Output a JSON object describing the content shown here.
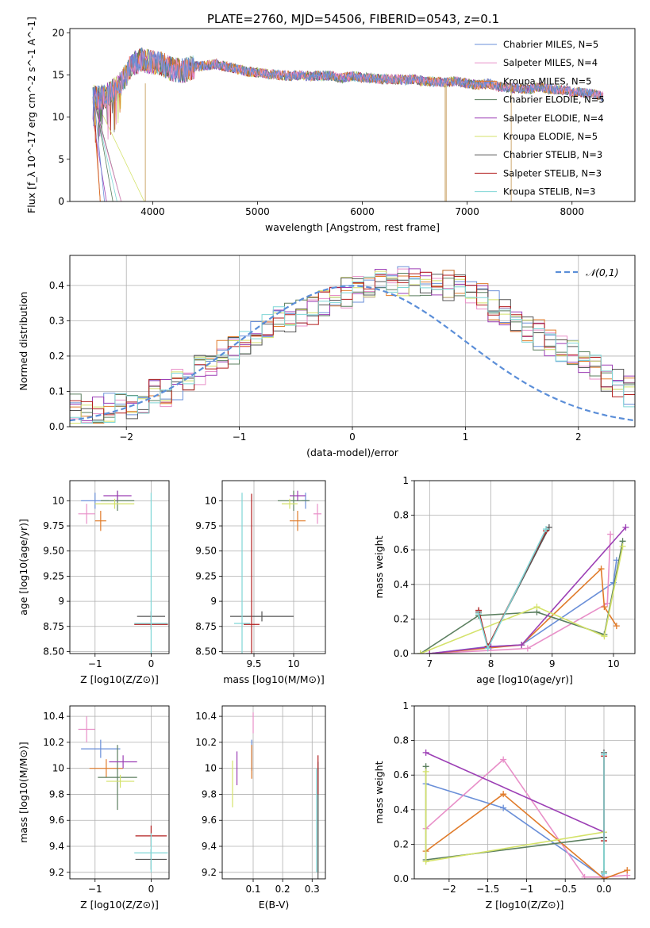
{
  "figure": {
    "title": "PLATE=2760, MJD=54506, FIBERID=0543, z=0.1"
  },
  "chart_data": [
    {
      "id": "spectrum",
      "type": "line",
      "xlabel": "wavelength [Angstrom, rest frame]",
      "ylabel": "Flux [f_λ 10^-17 erg cm^-2 s^-1 A^-1]",
      "xlim": [
        3210,
        8600
      ],
      "ylim": [
        0,
        20.5
      ],
      "xticks": [
        4000,
        5000,
        6000,
        7000,
        8000
      ],
      "yticks": [
        0,
        5,
        10,
        15,
        20
      ],
      "grid": false,
      "legend_position": "right",
      "series": [
        {
          "name": "Chabrier MILES, N_SSP=5",
          "color": "#6a8fd8"
        },
        {
          "name": "Salpeter MILES, N_SSP=4",
          "color": "#e88fc8"
        },
        {
          "name": "Kroupa MILES, N_SSP=5",
          "color": "#e07b2a"
        },
        {
          "name": "Chabrier ELODIE, N_SSP=5",
          "color": "#5b7f5f"
        },
        {
          "name": "Salpeter ELODIE, N_SSP=4",
          "color": "#9c3fb5"
        },
        {
          "name": "Kroupa ELODIE, N_SSP=5",
          "color": "#d4e26a"
        },
        {
          "name": "Chabrier STELIB, N_SSP=3",
          "color": "#555555"
        },
        {
          "name": "Salpeter STELIB, N_SSP=3",
          "color": "#b21f1f"
        },
        {
          "name": "Kroupa STELIB, N_SSP=3",
          "color": "#7fd6d6"
        }
      ],
      "data_envelope": {
        "wavelength": [
          3430,
          3500,
          3600,
          3700,
          3800,
          3900,
          4000,
          4100,
          4200,
          4300,
          4400,
          4500,
          4600,
          4700,
          4800,
          4900,
          5000,
          5100,
          5200,
          5300,
          5400,
          5500,
          5600,
          5700,
          5800,
          5900,
          6000,
          6100,
          6200,
          6300,
          6400,
          6500,
          6600,
          6700,
          6800,
          6900,
          7000,
          7100,
          7200,
          7300,
          7400,
          7500,
          7600,
          7700,
          7800,
          7900,
          8000,
          8100,
          8200,
          8300
        ],
        "flux": [
          12.5,
          12.2,
          12.8,
          14.0,
          16.3,
          16.8,
          16.5,
          16.2,
          15.6,
          15.5,
          16.0,
          16.1,
          16.3,
          16.0,
          15.7,
          15.4,
          15.3,
          15.1,
          15.0,
          14.9,
          15.0,
          14.8,
          14.9,
          14.9,
          14.6,
          14.9,
          14.7,
          14.6,
          14.5,
          14.5,
          14.4,
          14.5,
          14.2,
          14.2,
          14.1,
          14.3,
          14.0,
          13.8,
          14.0,
          13.6,
          13.5,
          13.4,
          13.3,
          13.6,
          13.3,
          13.2,
          13.0,
          12.9,
          12.8,
          12.4
        ]
      }
    },
    {
      "id": "residual_hist",
      "type": "line",
      "xlabel": "(data-model)/error",
      "ylabel": "Normed distribution",
      "xlim": [
        -2.5,
        2.5
      ],
      "ylim": [
        0,
        0.485
      ],
      "xticks": [
        -2,
        -1,
        0,
        1,
        2
      ],
      "yticks": [
        0.0,
        0.1,
        0.2,
        0.3,
        0.4
      ],
      "grid": true,
      "legend_position": "top-right",
      "legend": "𝒩(0,1)",
      "bin_edges_start": -2.5,
      "bin_width": 0.1,
      "reference_curve": {
        "name": "𝒩(0,1)",
        "color": "#5b8ed8",
        "style": "dashed"
      },
      "histogram_mean": [
        0.05,
        0.04,
        0.04,
        0.05,
        0.05,
        0.06,
        0.07,
        0.09,
        0.1,
        0.12,
        0.14,
        0.16,
        0.18,
        0.2,
        0.22,
        0.24,
        0.26,
        0.28,
        0.3,
        0.31,
        0.32,
        0.33,
        0.35,
        0.37,
        0.38,
        0.39,
        0.4,
        0.41,
        0.41,
        0.41,
        0.41,
        0.41,
        0.4,
        0.4,
        0.39,
        0.38,
        0.36,
        0.34,
        0.32,
        0.3,
        0.28,
        0.26,
        0.24,
        0.22,
        0.2,
        0.18,
        0.16,
        0.14,
        0.12,
        0.1
      ],
      "series_colors": [
        "#6a8fd8",
        "#e88fc8",
        "#e07b2a",
        "#5b7f5f",
        "#9c3fb5",
        "#d4e26a",
        "#555555",
        "#b21f1f",
        "#7fd6d6"
      ]
    },
    {
      "id": "age_vs_Z",
      "type": "scatter",
      "xlabel": "Z [log10(Z/Z⊙)]",
      "ylabel": "age  [log10(age/yr)]",
      "xlim": [
        -1.45,
        0.32
      ],
      "ylim": [
        8.48,
        10.2
      ],
      "xticks": [
        -1,
        0
      ],
      "yticks": [
        8.5,
        8.75,
        9.0,
        9.25,
        9.5,
        9.75,
        10.0
      ],
      "grid": true,
      "points": [
        {
          "x": -1.0,
          "y": 10.0,
          "xerr": 0.25,
          "yerr": 0.08,
          "color": "#6a8fd8"
        },
        {
          "x": -1.15,
          "y": 9.87,
          "xerr": 0.15,
          "yerr": 0.1,
          "color": "#e88fc8"
        },
        {
          "x": -0.9,
          "y": 9.8,
          "xerr": 0.1,
          "yerr": 0.1,
          "color": "#e07b2a"
        },
        {
          "x": -0.6,
          "y": 10.0,
          "xerr": 0.3,
          "yerr": 0.1,
          "color": "#5b7f5f"
        },
        {
          "x": -0.6,
          "y": 10.05,
          "xerr": 0.25,
          "yerr": 0.05,
          "color": "#9c3fb5"
        },
        {
          "x": -0.65,
          "y": 9.97,
          "xerr": 0.35,
          "yerr": 0.05,
          "color": "#d4e26a"
        },
        {
          "x": 0.0,
          "y": 8.85,
          "xerr": 0.25,
          "yerr": 0.05,
          "color": "#555555"
        },
        {
          "x": 0.0,
          "y": 8.77,
          "xerr": 0.3,
          "yerr": 0.05,
          "color": "#b21f1f"
        },
        {
          "x": 0.0,
          "y": 8.78,
          "xerr": 0.3,
          "yerr": 1.3,
          "color": "#7fd6d6"
        }
      ]
    },
    {
      "id": "age_vs_mass",
      "type": "scatter",
      "xlabel": "mass [log10(M/M⊙)]",
      "ylabel": "",
      "xlim": [
        9.1,
        10.4
      ],
      "ylim": [
        8.48,
        10.2
      ],
      "xticks": [
        9.5,
        10.0
      ],
      "yticks": [
        8.5,
        8.75,
        9.0,
        9.25,
        9.5,
        9.75,
        10.0
      ],
      "grid": true,
      "points": [
        {
          "x": 10.15,
          "y": 10.0,
          "xerr": 0.05,
          "yerr": 0.08,
          "color": "#6a8fd8"
        },
        {
          "x": 10.3,
          "y": 9.87,
          "xerr": 0.05,
          "yerr": 0.1,
          "color": "#e88fc8"
        },
        {
          "x": 10.05,
          "y": 9.8,
          "xerr": 0.1,
          "yerr": 0.1,
          "color": "#e07b2a"
        },
        {
          "x": 10.0,
          "y": 10.0,
          "xerr": 0.2,
          "yerr": 0.1,
          "color": "#5b7f5f"
        },
        {
          "x": 10.05,
          "y": 10.05,
          "xerr": 0.1,
          "yerr": 0.05,
          "color": "#9c3fb5"
        },
        {
          "x": 9.95,
          "y": 9.97,
          "xerr": 0.1,
          "yerr": 0.05,
          "color": "#d4e26a"
        },
        {
          "x": 9.6,
          "y": 8.85,
          "xerr": 0.4,
          "yerr": 0.05,
          "color": "#555555"
        },
        {
          "x": 9.47,
          "y": 8.77,
          "xerr": 0.1,
          "yerr": 1.3,
          "color": "#b21f1f"
        },
        {
          "x": 9.35,
          "y": 8.78,
          "xerr": 0.1,
          "yerr": 1.3,
          "color": "#7fd6d6"
        }
      ]
    },
    {
      "id": "massweight_vs_age",
      "type": "line",
      "xlabel": "age  [log10(age/yr)]",
      "ylabel": "mass weight",
      "xlim": [
        6.75,
        10.35
      ],
      "ylim": [
        0.0,
        1.0
      ],
      "xticks": [
        7,
        8,
        9,
        10
      ],
      "yticks": [
        0.0,
        0.2,
        0.4,
        0.6,
        0.8,
        1.0
      ],
      "grid": true,
      "series": [
        {
          "color": "#6a8fd8",
          "x": [
            7.0,
            7.95,
            8.5,
            10.0,
            10.05
          ],
          "y": [
            0.0,
            0.04,
            0.05,
            0.41,
            0.54
          ]
        },
        {
          "color": "#e88fc8",
          "x": [
            7.0,
            8.6,
            9.9,
            9.95
          ],
          "y": [
            0.0,
            0.03,
            0.29,
            0.69
          ]
        },
        {
          "color": "#e07b2a",
          "x": [
            7.0,
            8.5,
            9.8,
            9.85,
            10.05
          ],
          "y": [
            0.0,
            0.05,
            0.49,
            0.27,
            0.16
          ]
        },
        {
          "color": "#5b7f5f",
          "x": [
            6.85,
            7.8,
            8.75,
            9.85,
            10.15
          ],
          "y": [
            0.0,
            0.22,
            0.24,
            0.11,
            0.65
          ]
        },
        {
          "color": "#9c3fb5",
          "x": [
            7.0,
            8.0,
            8.5,
            10.2
          ],
          "y": [
            0.0,
            0.04,
            0.05,
            0.73
          ]
        },
        {
          "color": "#d4e26a",
          "x": [
            6.85,
            8.75,
            9.85,
            10.15
          ],
          "y": [
            0.0,
            0.27,
            0.1,
            0.62
          ]
        },
        {
          "color": "#555555",
          "x": [
            7.8,
            7.95,
            8.95
          ],
          "y": [
            0.24,
            0.04,
            0.73
          ]
        },
        {
          "color": "#b21f1f",
          "x": [
            7.8,
            7.95,
            8.9
          ],
          "y": [
            0.25,
            0.04,
            0.71
          ]
        },
        {
          "color": "#7fd6d6",
          "x": [
            7.8,
            7.95,
            8.9
          ],
          "y": [
            0.23,
            0.03,
            0.72
          ]
        }
      ]
    },
    {
      "id": "mass_vs_Z",
      "type": "scatter",
      "xlabel": "Z [log10(Z/Z⊙)]",
      "ylabel": "mass [log10(M/M⊙)]",
      "xlim": [
        -1.45,
        0.32
      ],
      "ylim": [
        9.15,
        10.48
      ],
      "xticks": [
        -1,
        0
      ],
      "yticks": [
        9.2,
        9.4,
        9.6,
        9.8,
        10.0,
        10.2,
        10.4
      ],
      "grid": true,
      "points": [
        {
          "x": -0.9,
          "y": 10.15,
          "xerr": 0.35,
          "yerr": 0.07,
          "color": "#6a8fd8"
        },
        {
          "x": -1.15,
          "y": 10.3,
          "xerr": 0.15,
          "yerr": 0.1,
          "color": "#e88fc8"
        },
        {
          "x": -0.8,
          "y": 10.0,
          "xerr": 0.3,
          "yerr": 0.07,
          "color": "#e07b2a"
        },
        {
          "x": -0.6,
          "y": 9.93,
          "xerr": 0.35,
          "yerr": 0.25,
          "color": "#5b7f5f"
        },
        {
          "x": -0.5,
          "y": 10.05,
          "xerr": 0.25,
          "yerr": 0.05,
          "color": "#9c3fb5"
        },
        {
          "x": -0.55,
          "y": 9.9,
          "xerr": 0.25,
          "yerr": 0.05,
          "color": "#d4e26a"
        },
        {
          "x": 0.0,
          "y": 9.3,
          "xerr": 0.28,
          "yerr": 0.08,
          "color": "#555555"
        },
        {
          "x": 0.0,
          "y": 9.48,
          "xerr": 0.28,
          "yerr": 0.08,
          "color": "#b21f1f"
        },
        {
          "x": 0.0,
          "y": 9.35,
          "xerr": 0.3,
          "yerr": 0.15,
          "color": "#7fd6d6"
        }
      ]
    },
    {
      "id": "mass_vs_ebv",
      "type": "scatter",
      "xlabel": "E(B-V)",
      "ylabel": "",
      "xlim": [
        -0.005,
        0.345
      ],
      "ylim": [
        9.15,
        10.48
      ],
      "xticks": [
        0.1,
        0.2,
        0.3
      ],
      "yticks": [
        9.2,
        9.4,
        9.6,
        9.8,
        10.0,
        10.2,
        10.4
      ],
      "grid": true,
      "points": [
        {
          "x": 0.095,
          "y": 10.1,
          "yerr": 0.12,
          "color": "#6a8fd8"
        },
        {
          "x": 0.1,
          "y": 10.35,
          "yerr": 0.08,
          "color": "#e88fc8"
        },
        {
          "x": 0.095,
          "y": 10.05,
          "yerr": 0.13,
          "color": "#e07b2a"
        },
        {
          "x": 0.32,
          "y": 9.6,
          "yerr": 0.4,
          "color": "#5b7f5f"
        },
        {
          "x": 0.045,
          "y": 10.0,
          "yerr": 0.13,
          "color": "#9c3fb5"
        },
        {
          "x": 0.03,
          "y": 9.88,
          "yerr": 0.18,
          "color": "#d4e26a"
        },
        {
          "x": 0.32,
          "y": 9.6,
          "yerr": 0.45,
          "color": "#555555"
        },
        {
          "x": 0.32,
          "y": 9.95,
          "yerr": 0.15,
          "color": "#b21f1f"
        },
        {
          "x": 0.315,
          "y": 9.6,
          "yerr": 0.4,
          "color": "#7fd6d6"
        }
      ]
    },
    {
      "id": "massweight_vs_Z",
      "type": "line",
      "xlabel": "Z [log10(Z/Z⊙)]",
      "ylabel": "mass weight",
      "xlim": [
        -2.45,
        0.4
      ],
      "ylim": [
        0.0,
        1.0
      ],
      "xticks": [
        -2.0,
        -1.5,
        -1.0,
        -0.5,
        0.0
      ],
      "yticks": [
        0.0,
        0.2,
        0.4,
        0.6,
        0.8,
        1.0
      ],
      "grid": true,
      "series": [
        {
          "color": "#6a8fd8",
          "x": [
            -2.3,
            -1.3,
            -0.02,
            0.0
          ],
          "y": [
            0.55,
            0.41,
            0.01,
            0.0
          ]
        },
        {
          "color": "#e88fc8",
          "x": [
            -2.3,
            -1.3,
            -0.25,
            0.0,
            0.3
          ],
          "y": [
            0.29,
            0.69,
            0.01,
            0.01,
            0.02
          ]
        },
        {
          "color": "#e07b2a",
          "x": [
            -2.3,
            -1.3,
            0.0,
            0.3
          ],
          "y": [
            0.16,
            0.49,
            0.0,
            0.05
          ]
        },
        {
          "color": "#5b7f5f",
          "x": [
            -2.3,
            -2.3,
            0.0,
            0.0
          ],
          "y": [
            0.65,
            0.11,
            0.24,
            0.04
          ]
        },
        {
          "color": "#9c3fb5",
          "x": [
            -2.3,
            0.0
          ],
          "y": [
            0.73,
            0.27
          ]
        },
        {
          "color": "#d4e26a",
          "x": [
            -2.3,
            -2.3,
            0.0
          ],
          "y": [
            0.62,
            0.1,
            0.27
          ]
        },
        {
          "color": "#555555",
          "x": [
            0.0,
            0.0
          ],
          "y": [
            0.73,
            0.24
          ]
        },
        {
          "color": "#b21f1f",
          "x": [
            0.0,
            0.0
          ],
          "y": [
            0.71,
            0.22
          ]
        },
        {
          "color": "#7fd6d6",
          "x": [
            0.0,
            0.0
          ],
          "y": [
            0.72,
            0.03
          ]
        }
      ]
    }
  ]
}
